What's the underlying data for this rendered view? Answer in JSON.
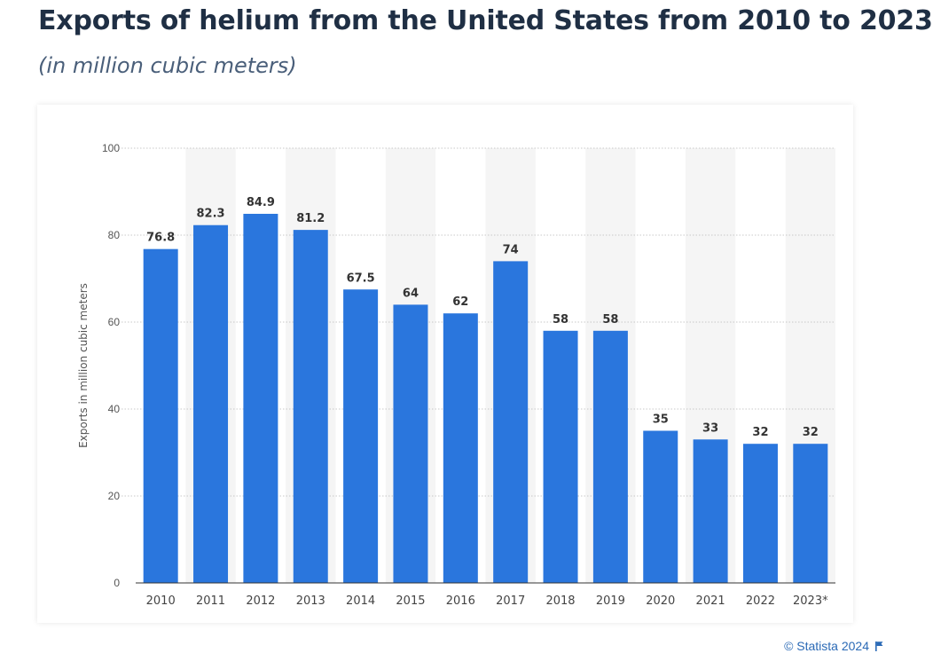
{
  "header": {
    "title": "Exports of helium from the United States from 2010 to 2023",
    "subtitle": "(in million cubic meters)"
  },
  "footer": {
    "copyright": "© Statista 2024",
    "flag_icon": "flag-icon",
    "link_color": "#2b6ab6"
  },
  "chart_data": {
    "type": "bar",
    "title": "Exports of helium from the United States from 2010 to 2023",
    "subtitle": "(in million cubic meters)",
    "xlabel": "",
    "ylabel": "Exports in million cubic meters",
    "categories": [
      "2010",
      "2011",
      "2012",
      "2013",
      "2014",
      "2015",
      "2016",
      "2017",
      "2018",
      "2019",
      "2020",
      "2021",
      "2022",
      "2023*"
    ],
    "values": [
      76.8,
      82.3,
      84.9,
      81.2,
      67.5,
      64,
      62,
      74,
      58,
      58,
      35,
      33,
      32,
      32
    ],
    "value_labels": [
      "76.8",
      "82.3",
      "84.9",
      "81.2",
      "67.5",
      "64",
      "62",
      "74",
      "58",
      "58",
      "35",
      "33",
      "32",
      "32"
    ],
    "ylim": [
      0,
      100
    ],
    "yticks": [
      0,
      20,
      40,
      60,
      80,
      100
    ],
    "grid": true,
    "legend": "none",
    "bar_color": "#2a76dd",
    "band_color": "#f5f5f5"
  }
}
